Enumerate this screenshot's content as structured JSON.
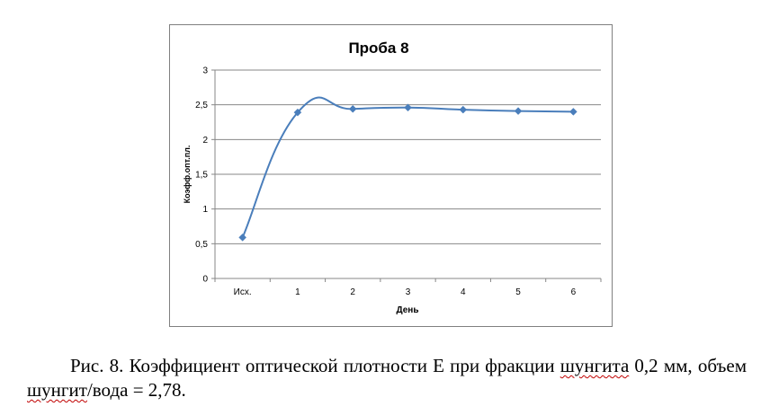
{
  "chart_data": {
    "type": "line",
    "title": "Проба 8",
    "xlabel": "День",
    "ylabel": "Коэфф.опт.пл.",
    "categories": [
      "Исх.",
      "1",
      "2",
      "3",
      "4",
      "5",
      "6"
    ],
    "series": [
      {
        "values": [
          0.59,
          2.39,
          2.44,
          2.46,
          2.43,
          2.41,
          2.4
        ]
      }
    ],
    "ylim": [
      0,
      3
    ],
    "yticks": [
      "0",
      "0,5",
      "1",
      "1,5",
      "2",
      "2,5",
      "3"
    ],
    "grid": true,
    "legend": "none",
    "colors": {
      "series": "#4a7ebb",
      "grid": "#878787",
      "axis": "#878787"
    }
  },
  "caption": {
    "part1": "Рис. 8. Коэффициент оптической плотности Е при фракции ",
    "squiggle1": "шунгита",
    "part2": " 0,2 мм, объем ",
    "squiggle2": "шунгит",
    "part3": "/вода = 2,78."
  }
}
